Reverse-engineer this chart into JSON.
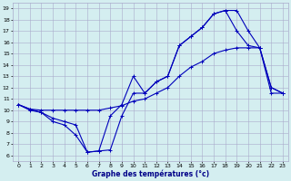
{
  "xlabel": "Graphe des températures (°c)",
  "background_color": "#d4eef0",
  "grid_color": "#aaaacc",
  "line_color": "#0000bb",
  "x_ticks": [
    0,
    1,
    2,
    3,
    4,
    5,
    6,
    7,
    8,
    9,
    10,
    11,
    12,
    13,
    14,
    15,
    16,
    17,
    18,
    19,
    20,
    21,
    22,
    23
  ],
  "y_ticks": [
    6,
    7,
    8,
    9,
    10,
    11,
    12,
    13,
    14,
    15,
    16,
    17,
    18,
    19
  ],
  "ylim": [
    5.5,
    19.5
  ],
  "xlim": [
    -0.5,
    23.5
  ],
  "curve1_x": [
    0,
    1,
    2,
    3,
    4,
    5,
    6,
    7,
    8,
    9,
    10,
    11,
    12,
    13,
    14,
    15,
    16,
    17,
    18,
    19,
    20,
    21,
    22,
    23
  ],
  "curve1_y": [
    10.5,
    10.0,
    9.8,
    9.0,
    8.7,
    7.8,
    6.3,
    6.4,
    9.5,
    10.5,
    13.0,
    11.5,
    12.5,
    13.0,
    15.7,
    16.5,
    17.3,
    18.5,
    18.8,
    17.0,
    15.7,
    15.5,
    12.0,
    11.5
  ],
  "curve2_x": [
    0,
    1,
    2,
    3,
    4,
    5,
    6,
    7,
    8,
    9,
    10,
    11,
    12,
    13,
    14,
    15,
    16,
    17,
    18,
    19,
    20,
    21,
    22,
    23
  ],
  "curve2_y": [
    10.5,
    10.1,
    10.0,
    10.0,
    10.0,
    10.0,
    10.0,
    10.0,
    10.2,
    10.4,
    10.8,
    11.0,
    11.5,
    12.0,
    13.0,
    13.8,
    14.3,
    15.0,
    15.3,
    15.5,
    15.5,
    15.5,
    11.5,
    11.5
  ],
  "curve3_x": [
    0,
    1,
    2,
    3,
    4,
    5,
    6,
    7,
    8,
    9,
    10,
    11,
    12,
    13,
    14,
    15,
    16,
    17,
    18,
    19,
    20,
    21,
    22,
    23
  ],
  "curve3_y": [
    10.5,
    10.1,
    9.8,
    9.3,
    9.0,
    8.7,
    6.3,
    6.4,
    6.5,
    9.5,
    11.5,
    11.5,
    12.5,
    13.0,
    15.7,
    16.5,
    17.3,
    18.5,
    18.8,
    18.8,
    17.0,
    15.5,
    12.0,
    11.5
  ]
}
